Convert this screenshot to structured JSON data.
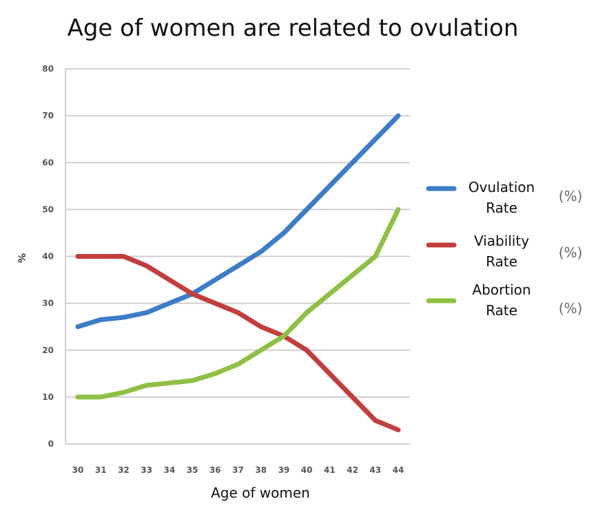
{
  "chart_data": {
    "type": "line",
    "title": "Age of women are related to ovulation",
    "xlabel": "Age of women",
    "ylabel": "%",
    "x": [
      "30",
      "31",
      "32",
      "33",
      "34",
      "35",
      "36",
      "37",
      "38",
      "39",
      "40",
      "41",
      "42",
      "43",
      "44"
    ],
    "y_ticks": [
      "0",
      "10",
      "20",
      "30",
      "40",
      "50",
      "60",
      "70",
      "80"
    ],
    "ylim": [
      0,
      80
    ],
    "grid": true,
    "legend_position": "right",
    "series": [
      {
        "name": "Ovulation Rate",
        "name_lines": [
          "Ovulation",
          "Rate"
        ],
        "unit": "(%)",
        "color": "#3d7cc8",
        "values": [
          25,
          26.5,
          27,
          28,
          30,
          32,
          35,
          38,
          41,
          45,
          50,
          55,
          60,
          65,
          70
        ]
      },
      {
        "name": "Viability Rate",
        "name_lines": [
          "Viability",
          "Rate"
        ],
        "unit": "(%)",
        "color": "#c43d3d",
        "values": [
          40,
          40,
          40,
          38,
          35,
          32,
          30,
          28,
          25,
          23,
          20,
          15,
          10,
          5,
          3
        ]
      },
      {
        "name": "Abortion Rate",
        "name_lines": [
          "Abortion",
          "Rate"
        ],
        "unit": "(%)",
        "color": "#8fc044",
        "values": [
          10,
          10,
          11,
          12.5,
          13,
          13.5,
          15,
          17,
          20,
          23,
          28,
          32,
          36,
          40,
          50
        ]
      }
    ]
  }
}
